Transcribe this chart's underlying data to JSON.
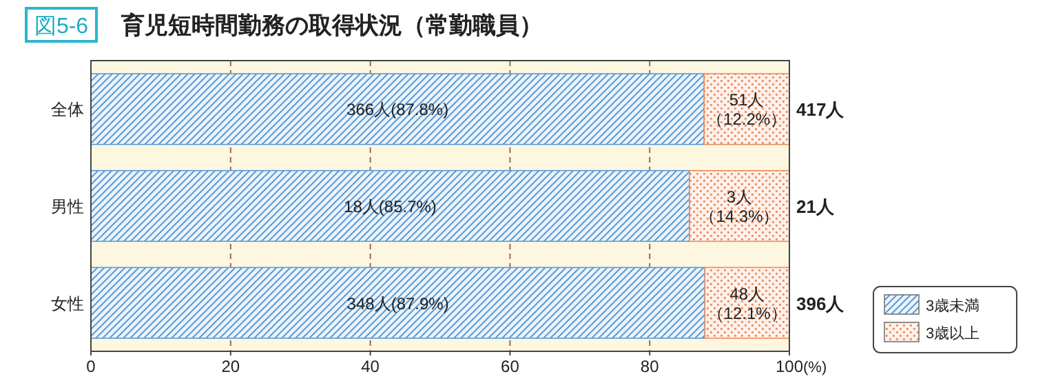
{
  "chart_data": {
    "type": "bar",
    "orientation": "horizontal",
    "stacked": true,
    "subtitle": "図5-6",
    "title": "育児短時間勤務の取得状況（常勤職員）",
    "xlabel": "(%)",
    "categories": [
      "全体",
      "男性",
      "女性"
    ],
    "series": [
      {
        "name": "3歳未満",
        "color": "#5b9bd5",
        "values": [
          87.8,
          85.7,
          87.9
        ],
        "value_labels": [
          "366人(87.8%)",
          "18人(85.7%)",
          "348人(87.9%)"
        ]
      },
      {
        "name": "3歳以上",
        "color": "#ef8a5a",
        "values": [
          12.2,
          14.3,
          12.1
        ],
        "value_labels": [
          "51人（12.2%）",
          "3人（14.3%）",
          "48人（12.1%）"
        ]
      }
    ],
    "annotations": [
      "417人",
      "21人",
      "396人"
    ],
    "xlim": [
      0,
      100
    ],
    "xticks": [
      0,
      20,
      40,
      60,
      80,
      100
    ],
    "grid": "x",
    "legend": "bottom right"
  }
}
